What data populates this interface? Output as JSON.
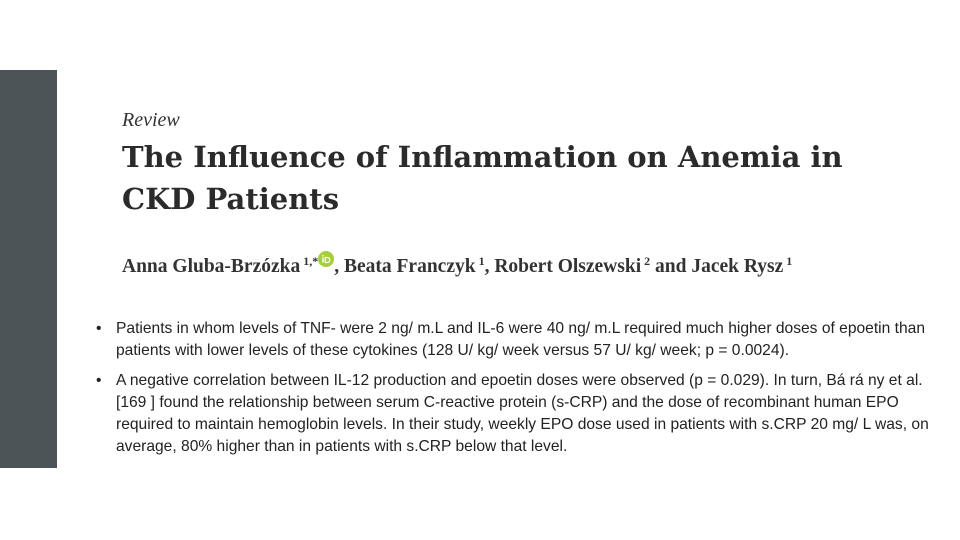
{
  "header": {
    "label": "Review",
    "title_lines": [
      "The Influence of Inflammation on Anemia in",
      "CKD Patients"
    ],
    "authors": [
      {
        "prefix": "",
        "name": "Anna Gluba-Brzózka",
        "affiliation": "1,*"
      },
      {
        "prefix": ", ",
        "name": "Beata Franczyk",
        "affiliation": "1"
      },
      {
        "prefix": ", ",
        "name": "Robert Olszewski",
        "affiliation": "2"
      },
      {
        "prefix": " and ",
        "name": "Jacek Rysz",
        "affiliation": "1"
      }
    ]
  },
  "bullets": [
    "Patients in whom levels of TNF-  were 2 ng/ m.L and IL-6 were 40 ng/ m.L required much higher doses of epoetin than patients with lower levels of these cytokines (128 U/ kg/ week versus 57 U/ kg/ week; p =  0.0024).",
    "A negative correlation between IL-12 production and epoetin doses were observed (p =  0.029). In turn, Bá rá ny et al. [169 ] found the relationship between serum C-reactive protein (s-CRP) and the dose of recombinant human EPO required to maintain hemoglobin levels. In their study, weekly EPO dose used in patients with s.CRP   20 mg/ L was, on average, 80% higher than in patients with s.CRP below that level."
  ]
}
